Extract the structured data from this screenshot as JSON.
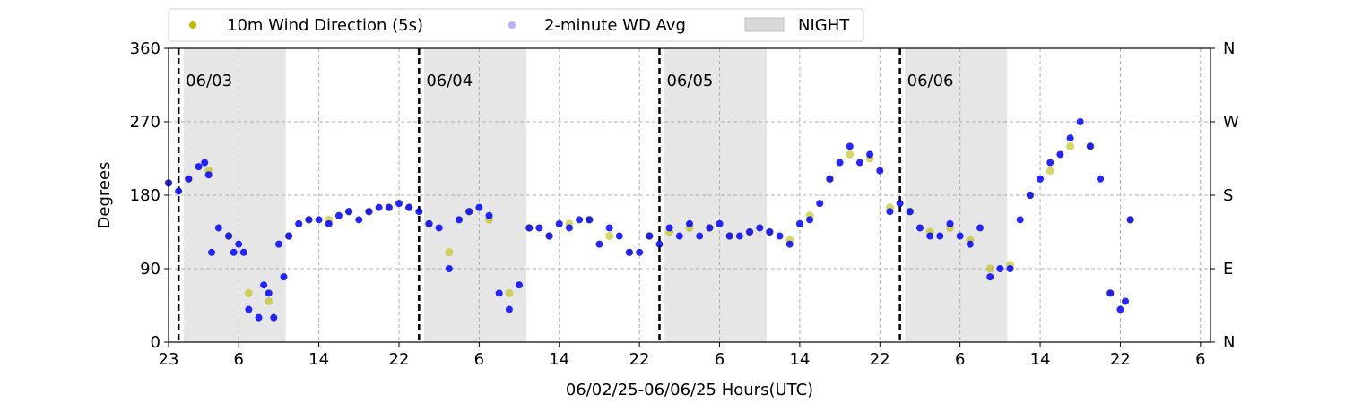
{
  "chart_data": {
    "type": "scatter",
    "xlabel": "06/02/25-06/06/25  Hours(UTC)",
    "ylabel": "Degrees",
    "x_tick_labels": [
      "23",
      "6",
      "14",
      "22",
      "6",
      "14",
      "22",
      "6",
      "14",
      "22",
      "6",
      "14",
      "22",
      "6"
    ],
    "x_tick_hours_since_0602_23": [
      0,
      7,
      15,
      23,
      31,
      39,
      47,
      55,
      63,
      71,
      79,
      87,
      95,
      103
    ],
    "xlim_hours": [
      0,
      104
    ],
    "ylim": [
      0,
      360
    ],
    "y_ticks": [
      0,
      90,
      180,
      270,
      360
    ],
    "y_right_labels": [
      "N",
      "E",
      "S",
      "W",
      "N"
    ],
    "grid": true,
    "legend_placement": "top",
    "legend": [
      {
        "label": "10m Wind Direction (5s)",
        "color": "#bdbd00",
        "marker": "dot"
      },
      {
        "label": "2-minute WD Avg",
        "color": "#0000ff",
        "marker": "dot"
      },
      {
        "label": "NIGHT",
        "color": "#d9d9d9",
        "marker": "patch"
      }
    ],
    "day_markers": [
      {
        "label": "06/03",
        "hour": 1
      },
      {
        "label": "06/04",
        "hour": 25
      },
      {
        "label": "06/05",
        "hour": 49
      },
      {
        "label": "06/06",
        "hour": 73
      }
    ],
    "night_periods_hours": [
      [
        1.5,
        11.7
      ],
      [
        25.5,
        35.7
      ],
      [
        49.5,
        59.7
      ],
      [
        73.5,
        83.7
      ]
    ],
    "series": [
      {
        "name": "2-minute WD Avg",
        "color": "#0000ff",
        "points": [
          [
            0,
            195
          ],
          [
            1,
            185
          ],
          [
            2,
            200
          ],
          [
            3,
            215
          ],
          [
            3.6,
            220
          ],
          [
            4,
            205
          ],
          [
            4.3,
            110
          ],
          [
            5,
            140
          ],
          [
            6,
            130
          ],
          [
            6.5,
            110
          ],
          [
            7,
            120
          ],
          [
            7.5,
            110
          ],
          [
            8,
            40
          ],
          [
            9,
            30
          ],
          [
            9.5,
            70
          ],
          [
            10,
            60
          ],
          [
            10.5,
            30
          ],
          [
            11,
            120
          ],
          [
            11.5,
            80
          ],
          [
            12,
            130
          ],
          [
            13,
            145
          ],
          [
            14,
            150
          ],
          [
            15,
            150
          ],
          [
            16,
            145
          ],
          [
            17,
            155
          ],
          [
            18,
            160
          ],
          [
            19,
            150
          ],
          [
            20,
            160
          ],
          [
            21,
            165
          ],
          [
            22,
            165
          ],
          [
            23,
            170
          ],
          [
            24,
            165
          ],
          [
            25,
            160
          ],
          [
            26,
            145
          ],
          [
            27,
            140
          ],
          [
            28,
            90
          ],
          [
            29,
            150
          ],
          [
            30,
            160
          ],
          [
            31,
            165
          ],
          [
            32,
            155
          ],
          [
            33,
            60
          ],
          [
            34,
            40
          ],
          [
            35,
            70
          ],
          [
            36,
            140
          ],
          [
            37,
            140
          ],
          [
            38,
            130
          ],
          [
            39,
            145
          ],
          [
            40,
            140
          ],
          [
            41,
            150
          ],
          [
            42,
            150
          ],
          [
            43,
            120
          ],
          [
            44,
            140
          ],
          [
            45,
            130
          ],
          [
            46,
            110
          ],
          [
            47,
            110
          ],
          [
            48,
            130
          ],
          [
            49,
            120
          ],
          [
            50,
            140
          ],
          [
            51,
            130
          ],
          [
            52,
            145
          ],
          [
            53,
            130
          ],
          [
            54,
            140
          ],
          [
            55,
            145
          ],
          [
            56,
            130
          ],
          [
            57,
            130
          ],
          [
            58,
            135
          ],
          [
            59,
            140
          ],
          [
            60,
            135
          ],
          [
            61,
            130
          ],
          [
            62,
            120
          ],
          [
            63,
            145
          ],
          [
            64,
            150
          ],
          [
            65,
            170
          ],
          [
            66,
            200
          ],
          [
            67,
            220
          ],
          [
            68,
            240
          ],
          [
            69,
            220
          ],
          [
            70,
            230
          ],
          [
            71,
            210
          ],
          [
            72,
            160
          ],
          [
            73,
            170
          ],
          [
            74,
            160
          ],
          [
            75,
            140
          ],
          [
            76,
            130
          ],
          [
            77,
            130
          ],
          [
            78,
            145
          ],
          [
            79,
            130
          ],
          [
            80,
            120
          ],
          [
            81,
            140
          ],
          [
            82,
            80
          ],
          [
            83,
            90
          ],
          [
            84,
            90
          ],
          [
            85,
            150
          ],
          [
            86,
            180
          ],
          [
            87,
            200
          ],
          [
            88,
            220
          ],
          [
            89,
            230
          ],
          [
            90,
            250
          ],
          [
            91,
            270
          ],
          [
            92,
            240
          ],
          [
            93,
            200
          ],
          [
            94,
            60
          ],
          [
            95,
            40
          ],
          [
            95.5,
            50
          ],
          [
            96,
            150
          ]
        ]
      },
      {
        "name": "10m Wind Direction (5s)",
        "color": "#bdbd00",
        "points": [
          [
            0,
            195
          ],
          [
            2,
            200
          ],
          [
            4,
            210
          ],
          [
            6,
            130
          ],
          [
            8,
            60
          ],
          [
            10,
            50
          ],
          [
            12,
            130
          ],
          [
            14,
            150
          ],
          [
            16,
            150
          ],
          [
            18,
            160
          ],
          [
            20,
            160
          ],
          [
            22,
            165
          ],
          [
            24,
            165
          ],
          [
            26,
            145
          ],
          [
            28,
            110
          ],
          [
            30,
            160
          ],
          [
            32,
            150
          ],
          [
            34,
            60
          ],
          [
            36,
            140
          ],
          [
            38,
            130
          ],
          [
            40,
            145
          ],
          [
            42,
            150
          ],
          [
            44,
            130
          ],
          [
            46,
            110
          ],
          [
            48,
            130
          ],
          [
            50,
            135
          ],
          [
            52,
            140
          ],
          [
            54,
            140
          ],
          [
            56,
            130
          ],
          [
            58,
            135
          ],
          [
            60,
            135
          ],
          [
            62,
            125
          ],
          [
            64,
            155
          ],
          [
            66,
            200
          ],
          [
            68,
            230
          ],
          [
            70,
            225
          ],
          [
            72,
            165
          ],
          [
            74,
            160
          ],
          [
            76,
            135
          ],
          [
            78,
            140
          ],
          [
            80,
            125
          ],
          [
            82,
            90
          ],
          [
            84,
            95
          ],
          [
            86,
            180
          ],
          [
            88,
            210
          ],
          [
            90,
            240
          ],
          [
            92,
            240
          ],
          [
            94,
            60
          ],
          [
            96,
            150
          ]
        ]
      }
    ]
  }
}
